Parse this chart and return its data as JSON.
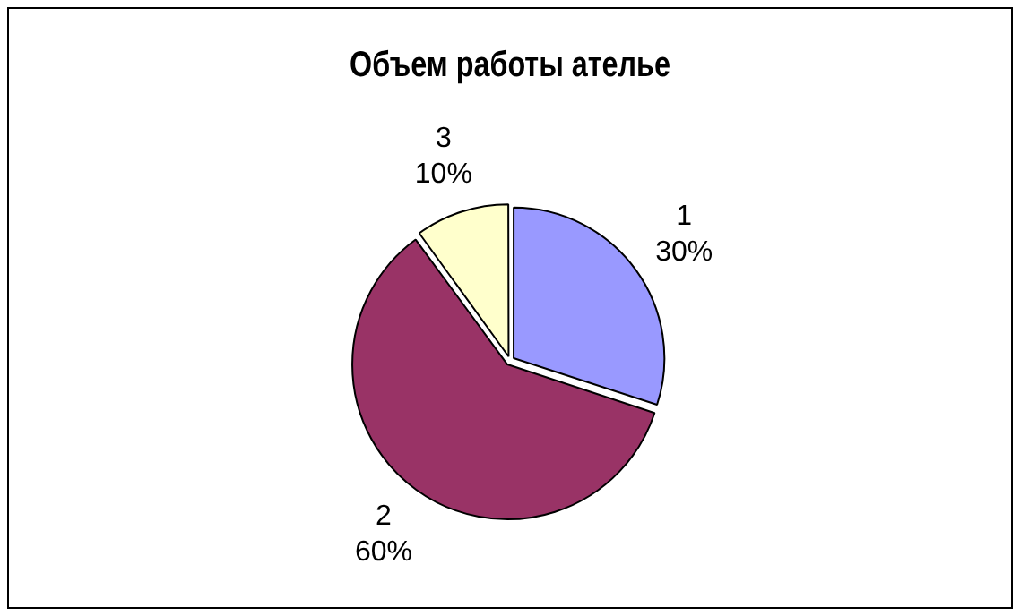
{
  "chart_data": {
    "type": "pie",
    "title": "Объем работы ателье",
    "categories": [
      "1",
      "2",
      "3"
    ],
    "values": [
      30,
      60,
      10
    ],
    "colors": [
      "#9999ff",
      "#993366",
      "#ffffcc"
    ],
    "value_labels": [
      "30%",
      "60%",
      "10%"
    ],
    "legend": false
  }
}
